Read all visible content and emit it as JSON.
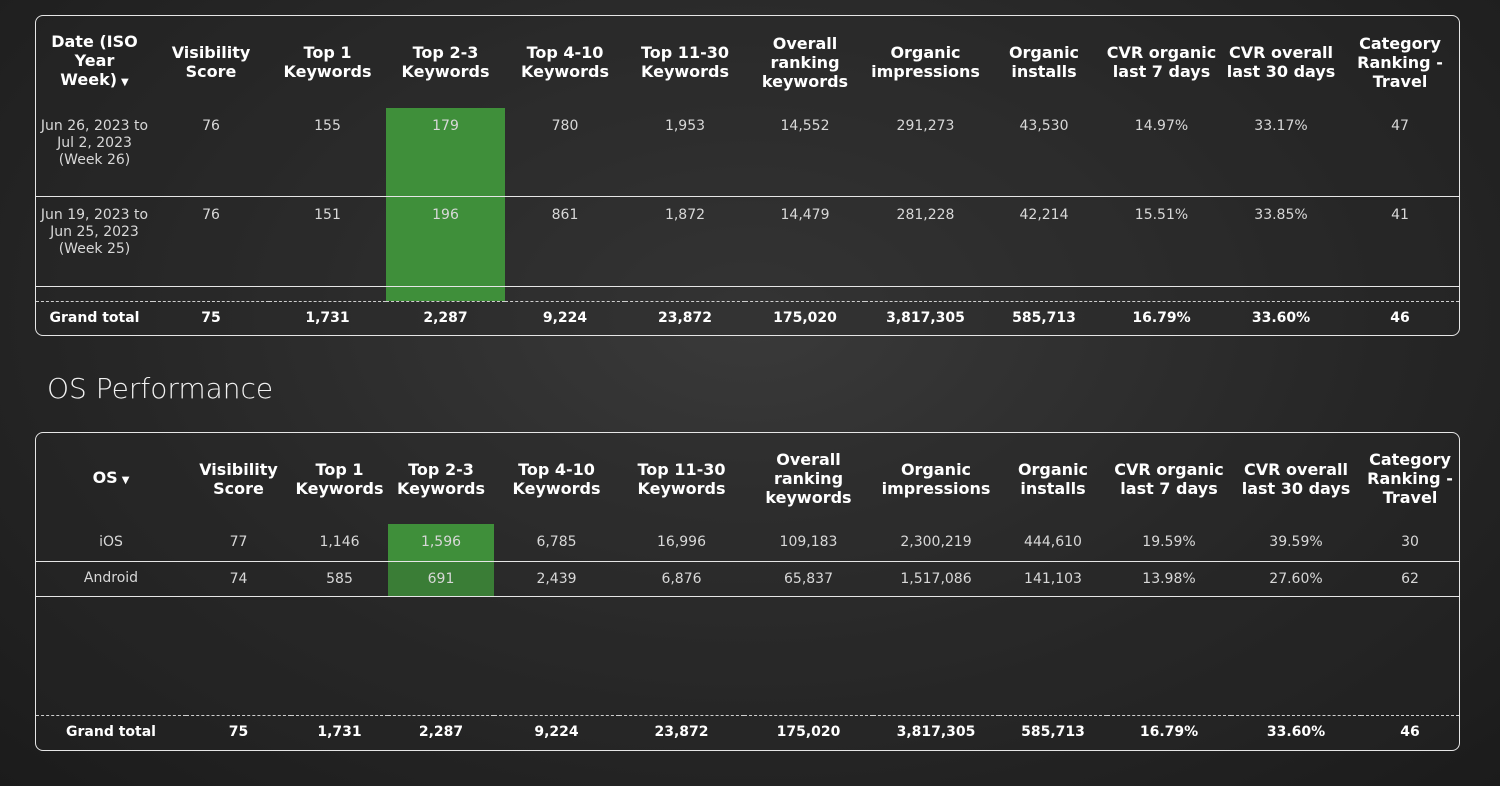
{
  "table1": {
    "headers": [
      "Date (ISO Year Week)",
      "Visibility Score",
      "Top 1 Keywords",
      "Top 2-3 Keywords",
      "Top 4-10 Keywords",
      "Top 11-30 Keywords",
      "Overall ranking keywords",
      "Organic impressions",
      "Organic installs",
      "CVR organic last 7 days",
      "CVR overall last 30 days",
      "Category Ranking - Travel"
    ],
    "rows": [
      [
        "Jun 26, 2023 to Jul 2, 2023 (Week 26)",
        "76",
        "155",
        "179",
        "780",
        "1,953",
        "14,552",
        "291,273",
        "43,530",
        "14.97%",
        "33.17%",
        "47"
      ],
      [
        "Jun 19, 2023 to Jun 25, 2023 (Week 25)",
        "76",
        "151",
        "196",
        "861",
        "1,872",
        "14,479",
        "281,228",
        "42,214",
        "15.51%",
        "33.85%",
        "41"
      ]
    ],
    "grand_total": [
      "Grand total",
      "75",
      "1,731",
      "2,287",
      "9,224",
      "23,872",
      "175,020",
      "3,817,305",
      "585,713",
      "16.79%",
      "33.60%",
      "46"
    ]
  },
  "section_title": "OS Performance",
  "table2": {
    "headers": [
      "OS",
      "Visibility Score",
      "Top 1 Keywords",
      "Top 2-3 Keywords",
      "Top 4-10 Keywords",
      "Top 11-30 Keywords",
      "Overall ranking keywords",
      "Organic impressions",
      "Organic installs",
      "CVR organic last 7 days",
      "CVR overall last 30 days",
      "Category Ranking - Travel"
    ],
    "rows": [
      [
        "iOS",
        "77",
        "1,146",
        "1,596",
        "6,785",
        "16,996",
        "109,183",
        "2,300,219",
        "444,610",
        "19.59%",
        "39.59%",
        "30"
      ],
      [
        "Android",
        "74",
        "585",
        "691",
        "2,439",
        "6,876",
        "65,837",
        "1,517,086",
        "141,103",
        "13.98%",
        "27.60%",
        "62"
      ]
    ],
    "grand_total": [
      "Grand total",
      "75",
      "1,731",
      "2,287",
      "9,224",
      "23,872",
      "175,020",
      "3,817,305",
      "585,713",
      "16.79%",
      "33.60%",
      "46"
    ]
  }
}
